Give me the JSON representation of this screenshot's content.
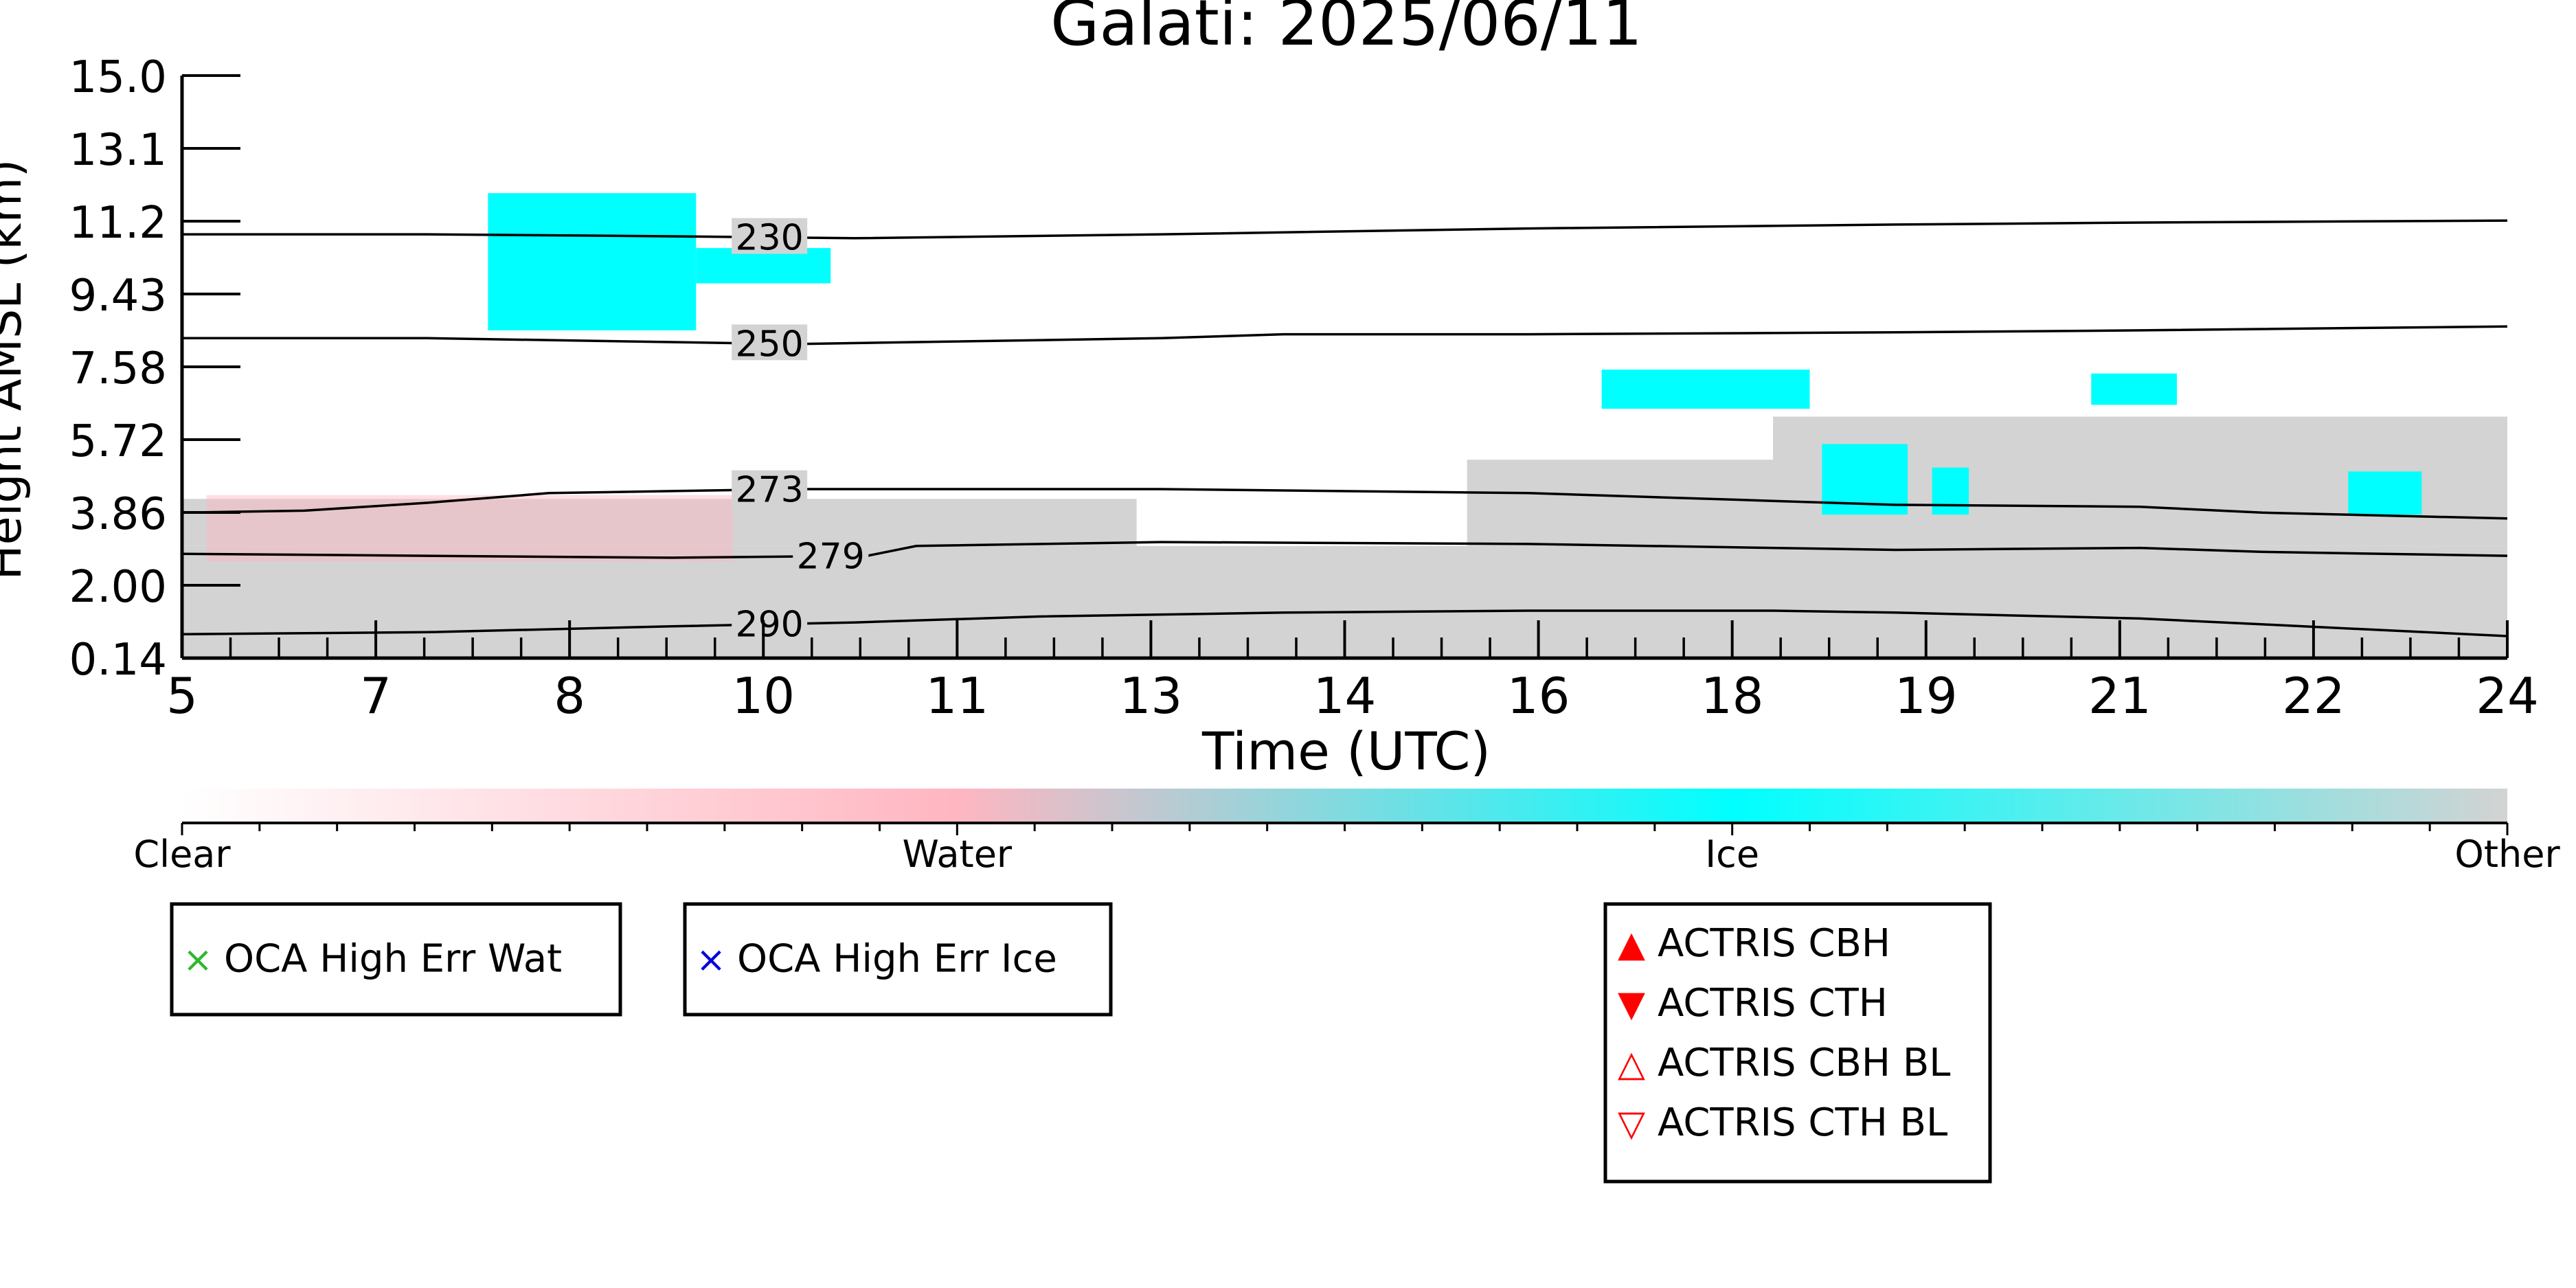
{
  "chart_data": {
    "type": "heatmap",
    "title": "Galati: 2025/06/11",
    "xlabel": "Time (UTC)",
    "ylabel": "Height AMSL (km)",
    "x_ticks": [
      "5",
      "7",
      "8",
      "10",
      "11",
      "13",
      "14",
      "16",
      "18",
      "19",
      "21",
      "22",
      "24"
    ],
    "y_ticks": [
      "0.14",
      "2.00",
      "3.86",
      "5.72",
      "7.58",
      "9.43",
      "11.2",
      "13.1",
      "15.0"
    ],
    "xlim": [
      5,
      24
    ],
    "ylim": [
      0.14,
      15.0
    ],
    "colorbar": {
      "labels": [
        "Clear",
        "Water",
        "Ice",
        "Other"
      ],
      "colors": {
        "clear": "#ffffff",
        "water": "#ffb6c1",
        "ice": "#00ffff",
        "other": "#d3d3d3"
      }
    },
    "contours": [
      {
        "label": "230",
        "points": [
          [
            5,
            10.95
          ],
          [
            7,
            10.95
          ],
          [
            9,
            10.9
          ],
          [
            10.5,
            10.85
          ],
          [
            13,
            10.95
          ],
          [
            16,
            11.1
          ],
          [
            19,
            11.2
          ],
          [
            21,
            11.25
          ],
          [
            24,
            11.3
          ]
        ]
      },
      {
        "label": "250",
        "points": [
          [
            5,
            8.3
          ],
          [
            7,
            8.3
          ],
          [
            9,
            8.2
          ],
          [
            10,
            8.15
          ],
          [
            11,
            8.2
          ],
          [
            13,
            8.3
          ],
          [
            14,
            8.4
          ],
          [
            16,
            8.4
          ],
          [
            19,
            8.45
          ],
          [
            21,
            8.5
          ],
          [
            24,
            8.6
          ]
        ]
      },
      {
        "label": "273",
        "points": [
          [
            5,
            3.85
          ],
          [
            6,
            3.9
          ],
          [
            7,
            4.1
          ],
          [
            8,
            4.35
          ],
          [
            9,
            4.4
          ],
          [
            10,
            4.45
          ],
          [
            13,
            4.45
          ],
          [
            16,
            4.35
          ],
          [
            18,
            4.15
          ],
          [
            19,
            4.05
          ],
          [
            21,
            4.0
          ],
          [
            22,
            3.85
          ],
          [
            24,
            3.7
          ]
        ]
      },
      {
        "label": "279",
        "points": [
          [
            5,
            2.8
          ],
          [
            7,
            2.75
          ],
          [
            9,
            2.7
          ],
          [
            10.6,
            2.75
          ],
          [
            11,
            3.0
          ],
          [
            13,
            3.1
          ],
          [
            16,
            3.05
          ],
          [
            19,
            2.9
          ],
          [
            21,
            2.95
          ],
          [
            22,
            2.85
          ],
          [
            24,
            2.75
          ]
        ]
      },
      {
        "label": "290",
        "points": [
          [
            5,
            0.75
          ],
          [
            7,
            0.8
          ],
          [
            9,
            0.95
          ],
          [
            10.5,
            1.05
          ],
          [
            12,
            1.2
          ],
          [
            14,
            1.3
          ],
          [
            16,
            1.35
          ],
          [
            18,
            1.35
          ],
          [
            19,
            1.3
          ],
          [
            21,
            1.15
          ],
          [
            22,
            1.0
          ],
          [
            24,
            0.7
          ]
        ]
      }
    ],
    "regions": [
      {
        "class": "other",
        "x": [
          5,
          24
        ],
        "y": [
          0.14,
          3.0
        ]
      },
      {
        "class": "other",
        "x": [
          5,
          12.8
        ],
        "y": [
          3.0,
          4.2
        ]
      },
      {
        "class": "water",
        "x": [
          5.2,
          9.5
        ],
        "y": [
          2.6,
          4.3
        ]
      },
      {
        "class": "other",
        "x": [
          15.5,
          24
        ],
        "y": [
          3.0,
          5.2
        ]
      },
      {
        "class": "other",
        "x": [
          18,
          24
        ],
        "y": [
          4.0,
          6.3
        ]
      },
      {
        "class": "ice",
        "x": [
          7.5,
          9.2
        ],
        "y": [
          8.5,
          12.0
        ]
      },
      {
        "class": "ice",
        "x": [
          9.2,
          10.3
        ],
        "y": [
          9.7,
          10.6
        ]
      },
      {
        "class": "ice",
        "x": [
          16.6,
          18.3
        ],
        "y": [
          6.5,
          7.5
        ]
      },
      {
        "class": "ice",
        "x": [
          18.4,
          19.1
        ],
        "y": [
          3.8,
          5.6
        ]
      },
      {
        "class": "ice",
        "x": [
          19.3,
          19.6
        ],
        "y": [
          3.8,
          5.0
        ]
      },
      {
        "class": "ice",
        "x": [
          20.6,
          21.3
        ],
        "y": [
          6.6,
          7.4
        ]
      },
      {
        "class": "ice",
        "x": [
          22.7,
          23.3
        ],
        "y": [
          3.8,
          4.9
        ]
      }
    ],
    "legends": [
      {
        "items": [
          {
            "symbol": "×",
            "color": "#2db82d",
            "label": "OCA High Err Wat"
          }
        ]
      },
      {
        "items": [
          {
            "symbol": "×",
            "color": "#0000dd",
            "label": "OCA High Err Ice"
          }
        ]
      },
      {
        "items": [
          {
            "symbol": "▲",
            "color": "#ff0000",
            "label": "ACTRIS CBH"
          },
          {
            "symbol": "▼",
            "color": "#ff0000",
            "label": "ACTRIS CTH"
          },
          {
            "symbol": "△",
            "color": "#ff0000",
            "label": "ACTRIS CBH BL"
          },
          {
            "symbol": "▽",
            "color": "#ff0000",
            "label": "ACTRIS CTH BL"
          }
        ]
      }
    ]
  }
}
